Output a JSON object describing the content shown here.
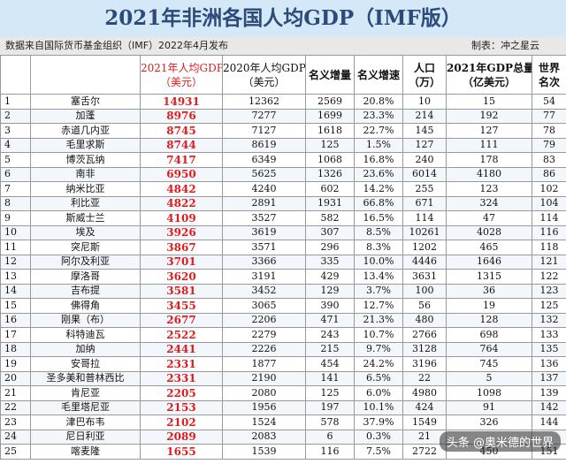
{
  "title": "2021年非洲各国人均GDP（IMF版）",
  "source_note": "数据来自国际货币基金组织（IMF）2022年4月发布",
  "author_note": "制表：冲之星云",
  "headers": {
    "rank": "",
    "country": "",
    "gdp_pc_2021_line1": "2021年人均GDP",
    "gdp_pc_2021_line2": "（美元）",
    "gdp_pc_2020_line1": "2020年人均GDP",
    "gdp_pc_2020_line2": "（美元）",
    "nominal_increase": "名义增量",
    "nominal_growth": "名义增速",
    "population_line1": "人口",
    "population_line2": "（万）",
    "gdp_total_line1": "2021年GDP总量",
    "gdp_total_line2": "（亿美元）",
    "world_rank_line1": "世界",
    "world_rank_line2": "名次"
  },
  "rows": [
    {
      "rank": "1",
      "country": "塞舌尔",
      "gdp2021": "14931",
      "gdp2020": "12362",
      "inc": "2569",
      "growth": "20.8%",
      "pop": "10",
      "total": "15",
      "world": "54"
    },
    {
      "rank": "2",
      "country": "加蓬",
      "gdp2021": "8976",
      "gdp2020": "7277",
      "inc": "1699",
      "growth": "23.3%",
      "pop": "214",
      "total": "192",
      "world": "77"
    },
    {
      "rank": "3",
      "country": "赤道几内亚",
      "gdp2021": "8745",
      "gdp2020": "7127",
      "inc": "1618",
      "growth": "22.7%",
      "pop": "145",
      "total": "127",
      "world": "78"
    },
    {
      "rank": "4",
      "country": "毛里求斯",
      "gdp2021": "8744",
      "gdp2020": "8619",
      "inc": "125",
      "growth": "1.5%",
      "pop": "127",
      "total": "111",
      "world": "79"
    },
    {
      "rank": "5",
      "country": "博茨瓦纳",
      "gdp2021": "7417",
      "gdp2020": "6349",
      "inc": "1068",
      "growth": "16.8%",
      "pop": "240",
      "total": "178",
      "world": "83"
    },
    {
      "rank": "6",
      "country": "南非",
      "gdp2021": "6950",
      "gdp2020": "5625",
      "inc": "1326",
      "growth": "23.6%",
      "pop": "6014",
      "total": "4180",
      "world": "86"
    },
    {
      "rank": "7",
      "country": "纳米比亚",
      "gdp2021": "4842",
      "gdp2020": "4240",
      "inc": "602",
      "growth": "14.2%",
      "pop": "255",
      "total": "123",
      "world": "102"
    },
    {
      "rank": "8",
      "country": "利比亚",
      "gdp2021": "4822",
      "gdp2020": "2891",
      "inc": "1931",
      "growth": "66.8%",
      "pop": "671",
      "total": "324",
      "world": "104"
    },
    {
      "rank": "9",
      "country": "斯威士兰",
      "gdp2021": "4109",
      "gdp2020": "3527",
      "inc": "582",
      "growth": "16.5%",
      "pop": "114",
      "total": "47",
      "world": "114"
    },
    {
      "rank": "10",
      "country": "埃及",
      "gdp2021": "3926",
      "gdp2020": "3619",
      "inc": "307",
      "growth": "8.5%",
      "pop": "10261",
      "total": "4028",
      "world": "116"
    },
    {
      "rank": "11",
      "country": "突尼斯",
      "gdp2021": "3867",
      "gdp2020": "3571",
      "inc": "296",
      "growth": "8.3%",
      "pop": "1202",
      "total": "465",
      "world": "118"
    },
    {
      "rank": "12",
      "country": "阿尔及利亚",
      "gdp2021": "3701",
      "gdp2020": "3366",
      "inc": "335",
      "growth": "10.0%",
      "pop": "4446",
      "total": "1646",
      "world": "121"
    },
    {
      "rank": "13",
      "country": "摩洛哥",
      "gdp2021": "3620",
      "gdp2020": "3191",
      "inc": "429",
      "growth": "13.4%",
      "pop": "3631",
      "total": "1315",
      "world": "122"
    },
    {
      "rank": "14",
      "country": "吉布提",
      "gdp2021": "3581",
      "gdp2020": "3452",
      "inc": "129",
      "growth": "3.7%",
      "pop": "100",
      "total": "36",
      "world": "123"
    },
    {
      "rank": "15",
      "country": "佛得角",
      "gdp2021": "3455",
      "gdp2020": "3065",
      "inc": "390",
      "growth": "12.7%",
      "pop": "56",
      "total": "19",
      "world": "125"
    },
    {
      "rank": "16",
      "country": "刚果（布）",
      "gdp2021": "2677",
      "gdp2020": "2206",
      "inc": "471",
      "growth": "21.3%",
      "pop": "480",
      "total": "128",
      "world": "132"
    },
    {
      "rank": "17",
      "country": "科特迪瓦",
      "gdp2021": "2522",
      "gdp2020": "2279",
      "inc": "243",
      "growth": "10.7%",
      "pop": "2766",
      "total": "698",
      "world": "133"
    },
    {
      "rank": "18",
      "country": "加纳",
      "gdp2021": "2441",
      "gdp2020": "2226",
      "inc": "215",
      "growth": "9.7%",
      "pop": "3128",
      "total": "764",
      "world": "135"
    },
    {
      "rank": "19",
      "country": "安哥拉",
      "gdp2021": "2331",
      "gdp2020": "1877",
      "inc": "454",
      "growth": "24.2%",
      "pop": "3196",
      "total": "745",
      "world": "136"
    },
    {
      "rank": "20",
      "country": "圣多美和普林西比",
      "gdp2021": "2331",
      "gdp2020": "2190",
      "inc": "141",
      "growth": "6.5%",
      "pop": "22",
      "total": "5",
      "world": "137"
    },
    {
      "rank": "21",
      "country": "肯尼亚",
      "gdp2021": "2205",
      "gdp2020": "2080",
      "inc": "125",
      "growth": "6.0%",
      "pop": "4980",
      "total": "1098",
      "world": "139"
    },
    {
      "rank": "22",
      "country": "毛里塔尼亚",
      "gdp2021": "2153",
      "gdp2020": "1956",
      "inc": "197",
      "growth": "10.1%",
      "pop": "424",
      "total": "91",
      "world": "142"
    },
    {
      "rank": "23",
      "country": "津巴布韦",
      "gdp2021": "2102",
      "gdp2020": "1524",
      "inc": "578",
      "growth": "37.9%",
      "pop": "1549",
      "total": "326",
      "world": "144"
    },
    {
      "rank": "24",
      "country": "尼日利亚",
      "gdp2021": "2089",
      "gdp2020": "2083",
      "inc": "6",
      "growth": "0.3%",
      "pop": "21",
      "total": "",
      "world": ""
    },
    {
      "rank": "25",
      "country": "喀麦隆",
      "gdp2021": "1655",
      "gdp2020": "1539",
      "inc": "116",
      "growth": "7.5%",
      "pop": "2722",
      "total": "450",
      "world": "151"
    }
  ],
  "watermark": "头条 @奥米德的世界"
}
